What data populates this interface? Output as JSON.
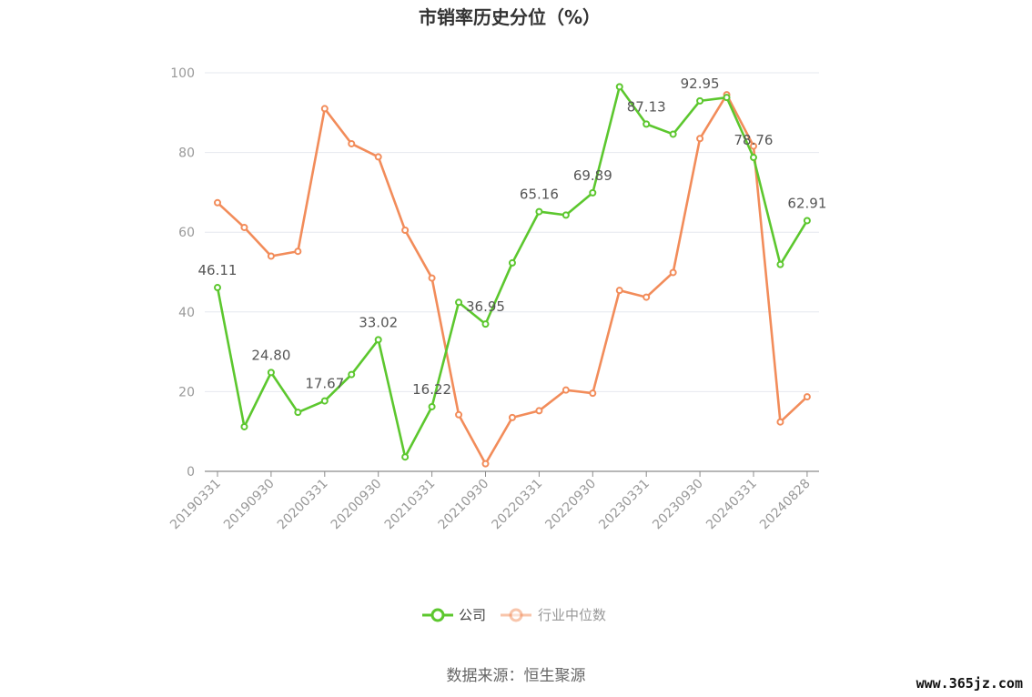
{
  "chart_data": {
    "type": "line",
    "title": "市销率历史分位（%）",
    "xlabel": "",
    "ylabel": "",
    "ylim": [
      0,
      100
    ],
    "yticks": [
      0,
      20,
      40,
      60,
      80,
      100
    ],
    "grid": true,
    "legend_position": "bottom",
    "x": [
      "20190331",
      "20190630",
      "20190930",
      "20191231",
      "20200331",
      "20200630",
      "20200930",
      "20201231",
      "20210331",
      "20210630",
      "20210930",
      "20211231",
      "20220331",
      "20220630",
      "20220930",
      "20221231",
      "20230331",
      "20230630",
      "20230930",
      "20231231",
      "20240331",
      "20240630",
      "20240828"
    ],
    "x_tick_labels": [
      "20190331",
      "20190930",
      "20200331",
      "20200930",
      "20210331",
      "20210930",
      "20220331",
      "20220930",
      "20230331",
      "20230930",
      "20240331",
      "20240828"
    ],
    "series": [
      {
        "name": "公司",
        "color": "#5cc72e",
        "values": [
          46.11,
          11.2,
          24.8,
          14.8,
          17.67,
          24.3,
          33.02,
          3.6,
          16.22,
          42.4,
          36.95,
          52.3,
          65.16,
          64.3,
          69.89,
          96.5,
          87.13,
          84.6,
          92.95,
          93.8,
          78.76,
          51.9,
          62.91
        ],
        "labels": [
          "46.11",
          "",
          "24.80",
          "",
          "17.67",
          "",
          "33.02",
          "",
          "16.22",
          "",
          "36.95",
          "",
          "65.16",
          "",
          "69.89",
          "",
          "87.13",
          "",
          "92.95",
          "",
          "78.76",
          "",
          "62.91"
        ]
      },
      {
        "name": "行业中位数",
        "color": "#f28c5a",
        "values": [
          67.4,
          61.2,
          54.0,
          55.2,
          91.0,
          82.2,
          78.9,
          60.5,
          48.5,
          14.2,
          1.9,
          13.5,
          15.2,
          20.4,
          19.6,
          45.4,
          43.7,
          49.9,
          83.5,
          94.5,
          81.6,
          12.4,
          18.7
        ]
      }
    ]
  },
  "source_text": "数据来源：恒生聚源",
  "watermark_text": "www.365jz.com"
}
